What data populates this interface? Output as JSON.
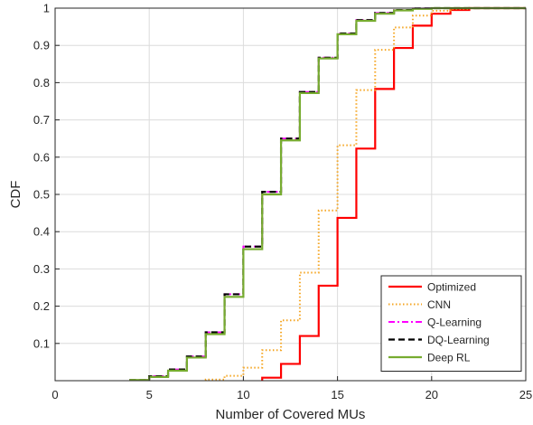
{
  "chart_data": {
    "type": "line",
    "step": true,
    "xlabel": "Number of Covered MUs",
    "ylabel": "CDF",
    "xlim": [
      0,
      25
    ],
    "ylim": [
      0,
      1
    ],
    "xticks": [
      0,
      5,
      10,
      15,
      20,
      25
    ],
    "yticks": [
      0.1,
      0.2,
      0.3,
      0.4,
      0.5,
      0.6,
      0.7,
      0.8,
      0.9,
      1
    ],
    "xtick_labels": [
      "0",
      "5",
      "10",
      "15",
      "20",
      "25"
    ],
    "ytick_labels": [
      "0.1",
      "0.2",
      "0.3",
      "0.4",
      "0.5",
      "0.6",
      "0.7",
      "0.8",
      "0.9",
      "1"
    ],
    "grid": true,
    "legend_position": "bottom-right",
    "series": [
      {
        "name": "Optimized",
        "color": "#ff0000",
        "style": "solid",
        "x": [
          11,
          12,
          13,
          14,
          15,
          16,
          17,
          18,
          19,
          20,
          21,
          22,
          25
        ],
        "y": [
          0.008,
          0.045,
          0.12,
          0.255,
          0.437,
          0.623,
          0.783,
          0.893,
          0.953,
          0.985,
          0.995,
          1.0,
          1.0
        ]
      },
      {
        "name": "CNN",
        "color": "#f5a623",
        "style": "dotted",
        "x": [
          8,
          9,
          10,
          11,
          12,
          13,
          14,
          15,
          16,
          17,
          18,
          19,
          20,
          21,
          22,
          25
        ],
        "y": [
          0.003,
          0.013,
          0.035,
          0.082,
          0.162,
          0.29,
          0.457,
          0.632,
          0.78,
          0.888,
          0.948,
          0.98,
          0.993,
          0.998,
          1.0,
          1.0
        ]
      },
      {
        "name": "Q-Learning",
        "color": "#ff00ff",
        "style": "dashdot",
        "x": [
          4,
          5,
          6,
          7,
          8,
          9,
          10,
          11,
          12,
          13,
          14,
          15,
          16,
          17,
          18,
          19,
          20,
          21,
          25
        ],
        "y": [
          0.002,
          0.012,
          0.03,
          0.065,
          0.13,
          0.232,
          0.36,
          0.507,
          0.65,
          0.775,
          0.867,
          0.932,
          0.968,
          0.987,
          0.995,
          0.999,
          1.0,
          1.0,
          1.0
        ]
      },
      {
        "name": "DQ-Learning",
        "color": "#000000",
        "style": "dashed",
        "x": [
          4,
          5,
          6,
          7,
          8,
          9,
          10,
          11,
          12,
          13,
          14,
          15,
          16,
          17,
          18,
          19,
          20,
          21,
          25
        ],
        "y": [
          0.002,
          0.012,
          0.03,
          0.065,
          0.13,
          0.232,
          0.36,
          0.507,
          0.65,
          0.775,
          0.867,
          0.932,
          0.968,
          0.987,
          0.995,
          0.999,
          1.0,
          1.0,
          1.0
        ]
      },
      {
        "name": "Deep RL",
        "color": "#77ac30",
        "style": "solid",
        "x": [
          4,
          5,
          6,
          7,
          8,
          9,
          10,
          11,
          12,
          13,
          14,
          15,
          16,
          17,
          18,
          19,
          20,
          21,
          25
        ],
        "y": [
          0.002,
          0.01,
          0.027,
          0.062,
          0.125,
          0.225,
          0.353,
          0.5,
          0.645,
          0.772,
          0.865,
          0.93,
          0.966,
          0.985,
          0.994,
          0.998,
          1.0,
          1.0,
          1.0
        ]
      }
    ]
  }
}
